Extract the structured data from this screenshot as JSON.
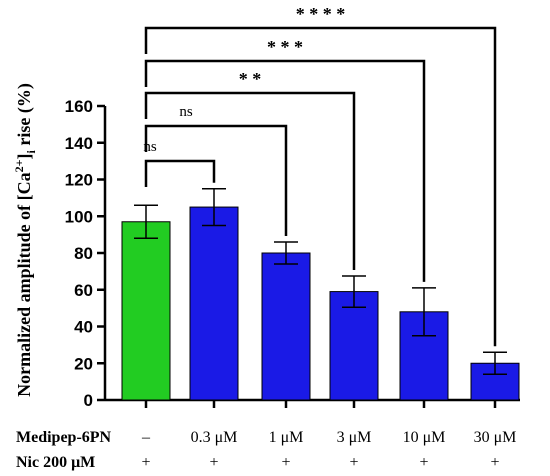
{
  "chart_data": {
    "type": "bar",
    "ylabel_main": "Normalized amplitude of [Ca",
    "ylabel_sup": "2+",
    "ylabel_close": "]",
    "ylabel_sub": "i",
    "ylabel_tail": " rise (%)",
    "ylim": [
      0,
      160
    ],
    "yticks": [
      0,
      20,
      40,
      60,
      80,
      100,
      120,
      140,
      160
    ],
    "row_labels": [
      "Medipep-6PN",
      "Nic 200 μM"
    ],
    "categories": [
      "–",
      "0.3 μM",
      "1 μM",
      "3 μM",
      "10 μM",
      "30 μM"
    ],
    "nic_marks": [
      "+",
      "+",
      "+",
      "+",
      "+",
      "+"
    ],
    "values": [
      97,
      105,
      80,
      59,
      48,
      20
    ],
    "errors": [
      9,
      10,
      6,
      8.5,
      13,
      6
    ],
    "bar_colors": [
      "#22cc22",
      "#1a1ae6",
      "#1a1ae6",
      "#1a1ae6",
      "#1a1ae6",
      "#1a1ae6"
    ],
    "comparisons": [
      {
        "from": 0,
        "to": 1,
        "label": "ns"
      },
      {
        "from": 0,
        "to": 2,
        "label": "ns"
      },
      {
        "from": 0,
        "to": 3,
        "label": "* *"
      },
      {
        "from": 0,
        "to": 4,
        "label": "* * *"
      },
      {
        "from": 0,
        "to": 5,
        "label": "* * * *"
      }
    ]
  }
}
